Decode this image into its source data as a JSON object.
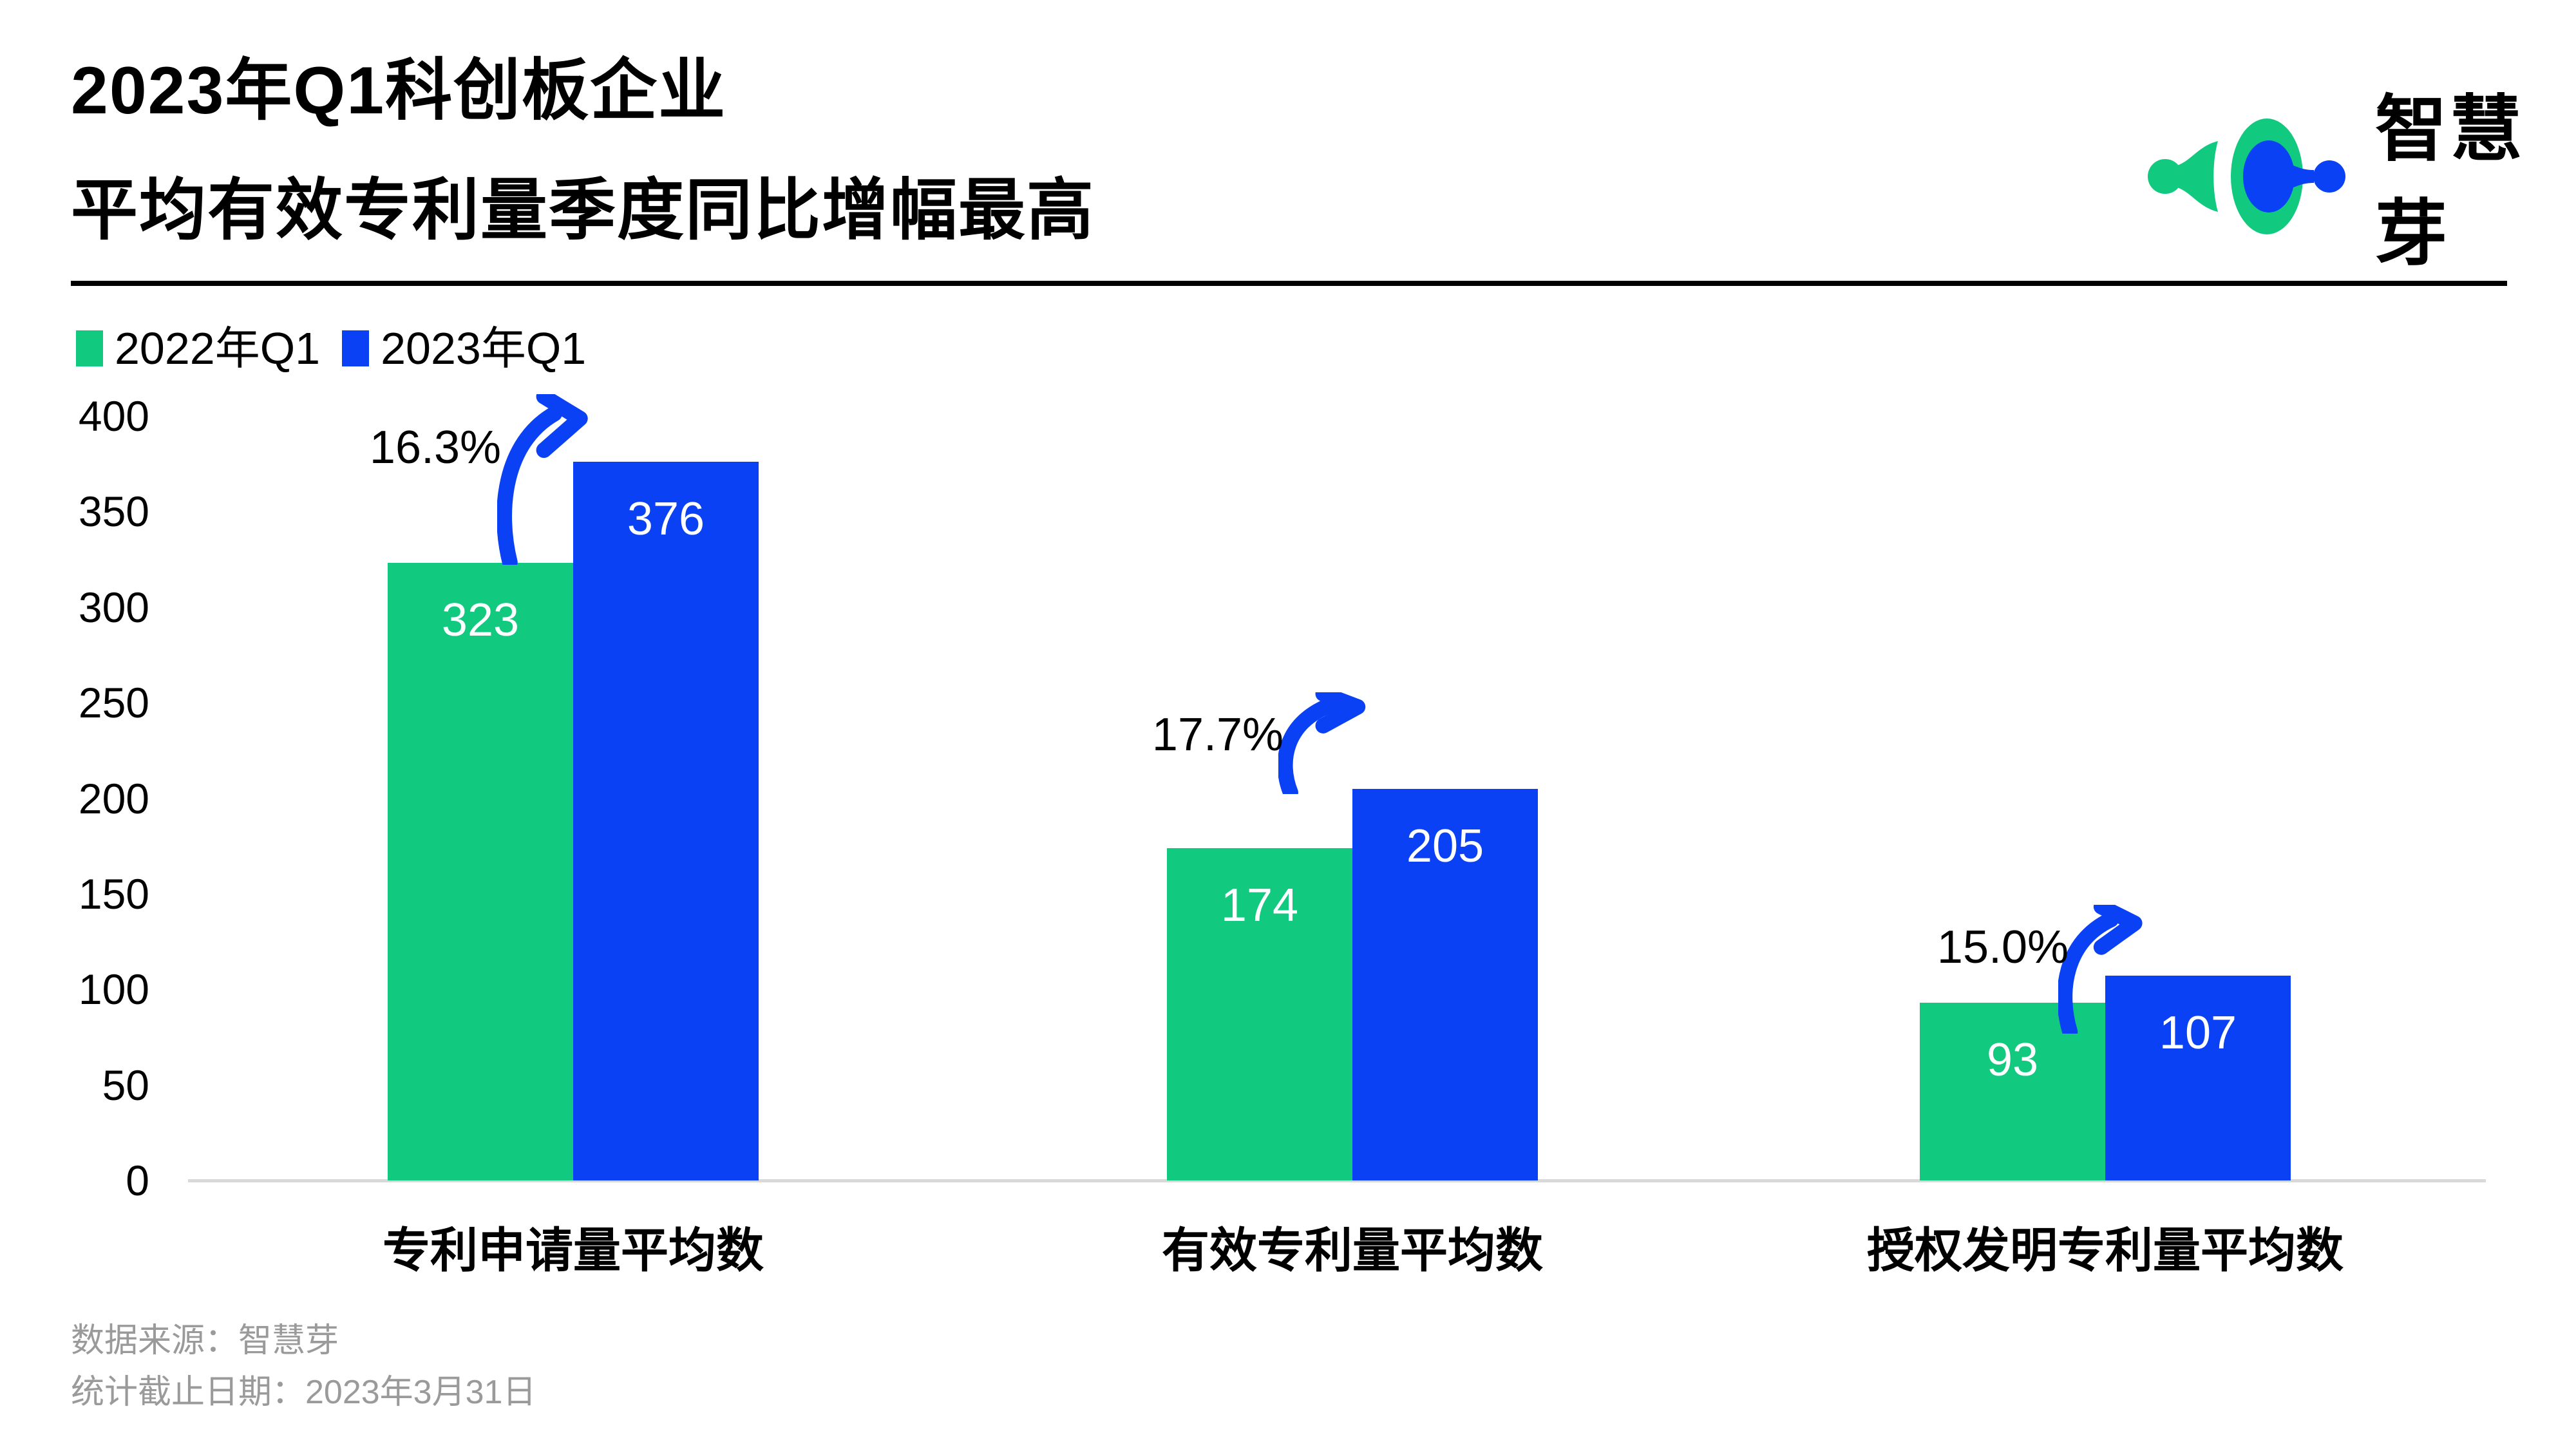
{
  "title": {
    "line1": "2023年Q1科创板企业",
    "line2": "平均有效专利量季度同比增幅最高"
  },
  "logo": {
    "text": "智慧芽"
  },
  "legend": [
    {
      "label": "2022年Q1",
      "color": "#12C980"
    },
    {
      "label": "2023年Q1",
      "color": "#0B41F5"
    }
  ],
  "colors": {
    "green": "#12C980",
    "blue": "#0B41F5",
    "axis_line": "#D9D9D9",
    "divider": "#000000",
    "footer_text": "#9A9A9A",
    "bar_value_text": "#FFFFFF"
  },
  "chart_data": {
    "type": "bar",
    "title": "2023年Q1科创板企业平均有效专利量季度同比增幅最高",
    "categories": [
      "专利申请量平均数",
      "有效专利量平均数",
      "授权发明专利量平均数"
    ],
    "series": [
      {
        "name": "2022年Q1",
        "color": "#12C980",
        "values": [
          323,
          174,
          93
        ]
      },
      {
        "name": "2023年Q1",
        "color": "#0B41F5",
        "values": [
          376,
          205,
          107
        ]
      }
    ],
    "growth_labels": [
      "16.3%",
      "17.7%",
      "15.0%"
    ],
    "ylim": [
      0,
      400
    ],
    "ytick_step": 50,
    "yticks": [
      0,
      50,
      100,
      150,
      200,
      250,
      300,
      350,
      400
    ],
    "grid": false,
    "legend_position": "top-left",
    "value_labels": "inside-top"
  },
  "footer": {
    "source": "数据来源：智慧芽",
    "date": "统计截止日期：2023年3月31日"
  }
}
